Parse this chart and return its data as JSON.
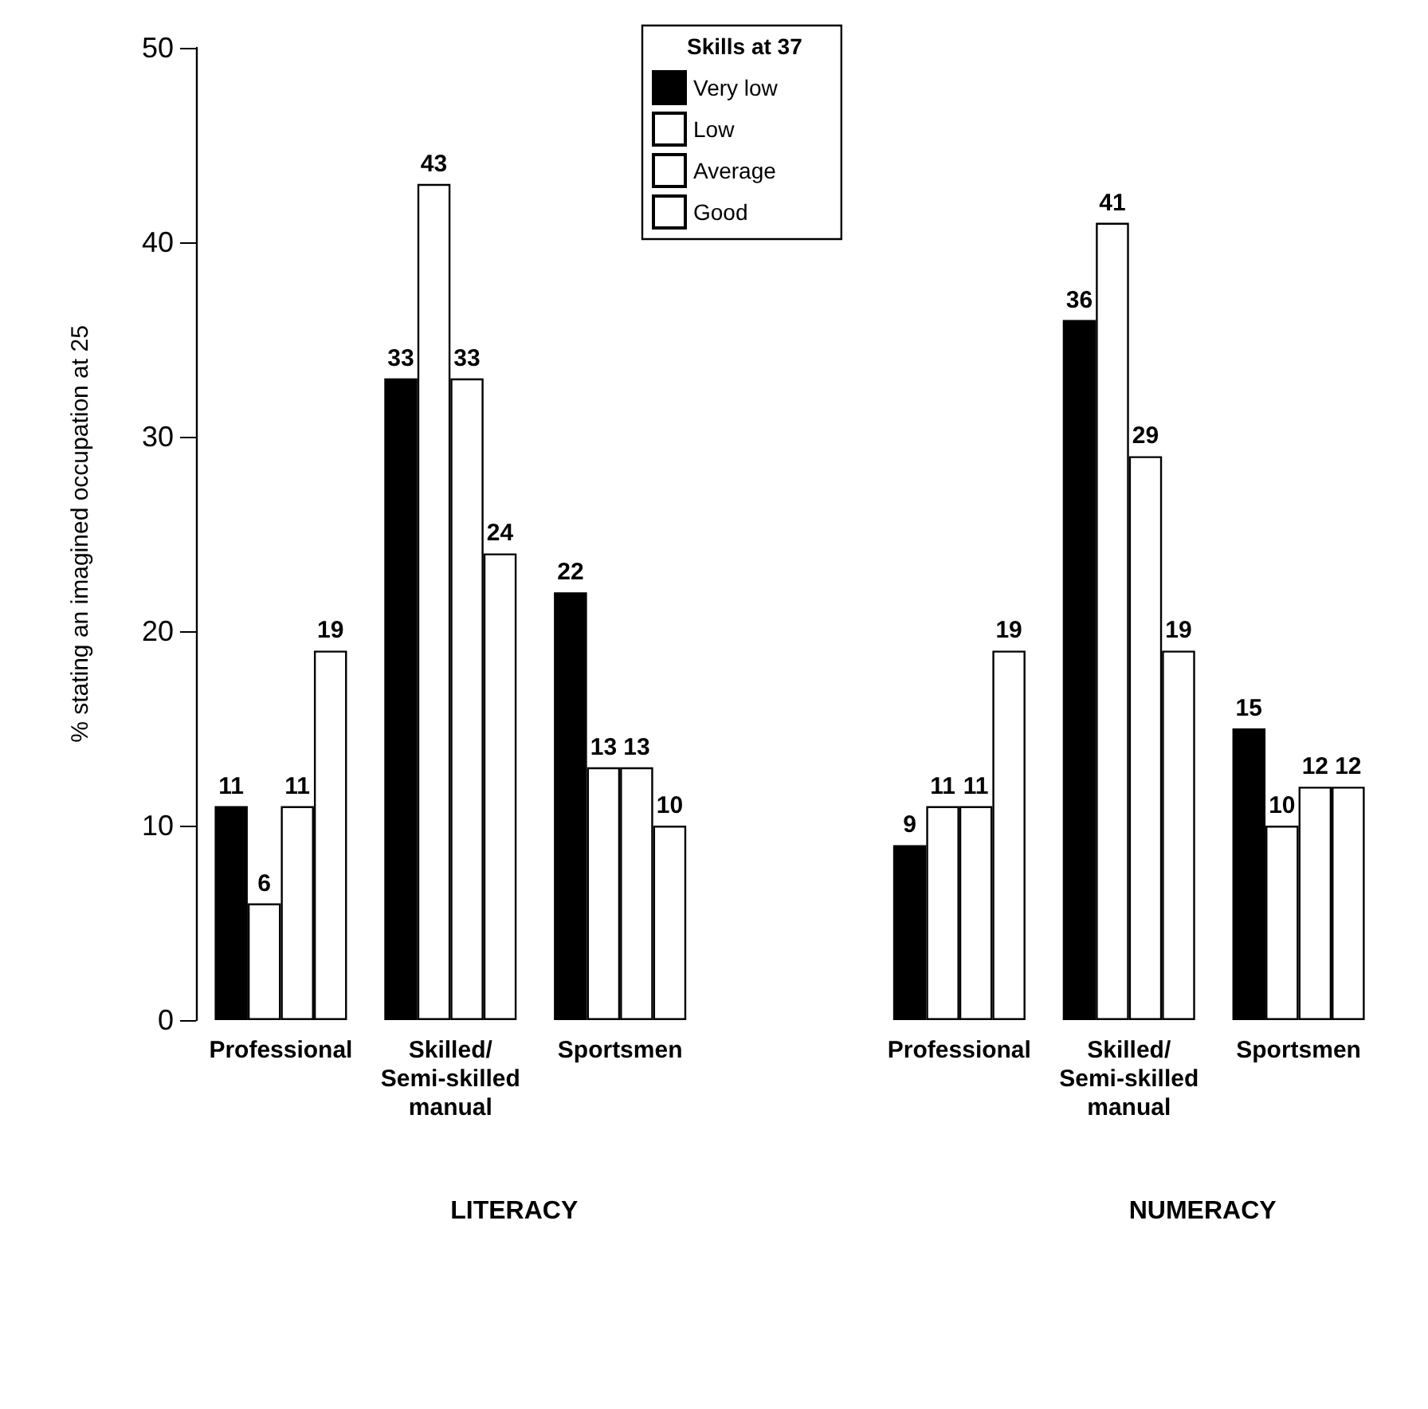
{
  "chart_data": {
    "type": "bar",
    "ylabel": "% stating an imagined occupation at 25",
    "legend_title": "Skills at 37",
    "categories": [
      "Professional",
      "Skilled/\nSemi-skilled\nmanual",
      "Sportsmen",
      null,
      "Professional",
      "Skilled/\nSemi-skilled\nmanual",
      "Sportsmen"
    ],
    "series": [
      {
        "name": "Very low",
        "color": "#000000",
        "values": [
          11,
          33,
          22,
          null,
          9,
          36,
          15
        ]
      },
      {
        "name": "Low",
        "color": "#ffffff",
        "values": [
          6,
          43,
          13,
          null,
          11,
          41,
          10
        ]
      },
      {
        "name": "Average",
        "color": "#ffffff",
        "values": [
          11,
          33,
          13,
          null,
          11,
          29,
          12
        ]
      },
      {
        "name": "Good",
        "color": "#ffffff",
        "values": [
          19,
          24,
          10,
          null,
          19,
          19,
          12
        ]
      }
    ],
    "ylim": [
      0,
      50
    ],
    "yticks": [
      0,
      10,
      20,
      30,
      40,
      50
    ],
    "grid": false,
    "legend": "top",
    "data_labels": true,
    "annotations": [
      "LITERACY",
      "NUMERACY"
    ]
  }
}
